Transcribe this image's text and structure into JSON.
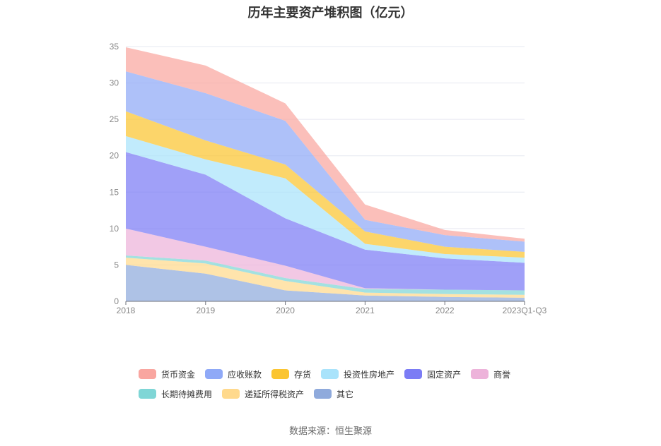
{
  "chart_data": {
    "type": "area",
    "stacked": true,
    "title": "历年主要资产堆积图（亿元）",
    "categories": [
      "2018",
      "2019",
      "2020",
      "2021",
      "2022",
      "2023Q1-Q3"
    ],
    "y_ticks": [
      "0",
      "5",
      "10",
      "15",
      "20",
      "25",
      "30",
      "35"
    ],
    "ylim": [
      0,
      35
    ],
    "grid": true,
    "legend_position": "bottom",
    "series": [
      {
        "name": "其它",
        "color": "#8faadc",
        "values": [
          5.0,
          3.8,
          1.5,
          0.8,
          0.6,
          0.5
        ]
      },
      {
        "name": "递延所得税资产",
        "color": "#ffd98c",
        "values": [
          1.0,
          1.4,
          1.3,
          0.4,
          0.4,
          0.4
        ]
      },
      {
        "name": "长期待摊费用",
        "color": "#7fd6d6",
        "values": [
          0.3,
          0.4,
          0.4,
          0.5,
          0.6,
          0.6
        ]
      },
      {
        "name": "商誉",
        "color": "#edb3da",
        "values": [
          3.7,
          1.9,
          1.7,
          0.1,
          0.0,
          0.0
        ]
      },
      {
        "name": "固定资产",
        "color": "#7b7cf5",
        "values": [
          10.5,
          9.9,
          6.5,
          5.3,
          4.3,
          3.8
        ]
      },
      {
        "name": "投资性房地产",
        "color": "#a9e3fb",
        "values": [
          2.2,
          2.1,
          5.5,
          0.8,
          0.6,
          0.7
        ]
      },
      {
        "name": "存货",
        "color": "#fbc531",
        "values": [
          3.4,
          2.6,
          1.9,
          1.7,
          1.0,
          0.8
        ]
      },
      {
        "name": "应收账款",
        "color": "#8fa9f7",
        "values": [
          5.5,
          6.5,
          6.0,
          1.6,
          1.6,
          1.4
        ]
      },
      {
        "name": "货币资金",
        "color": "#f9a6a0",
        "values": [
          3.3,
          3.8,
          2.4,
          2.1,
          0.7,
          0.4
        ]
      }
    ],
    "legend_order": [
      "货币资金",
      "应收账款",
      "存货",
      "投资性房地产",
      "固定资产",
      "商誉",
      "长期待摊费用",
      "递延所得税资产",
      "其它"
    ]
  },
  "source_text": "数据来源：恒生聚源"
}
